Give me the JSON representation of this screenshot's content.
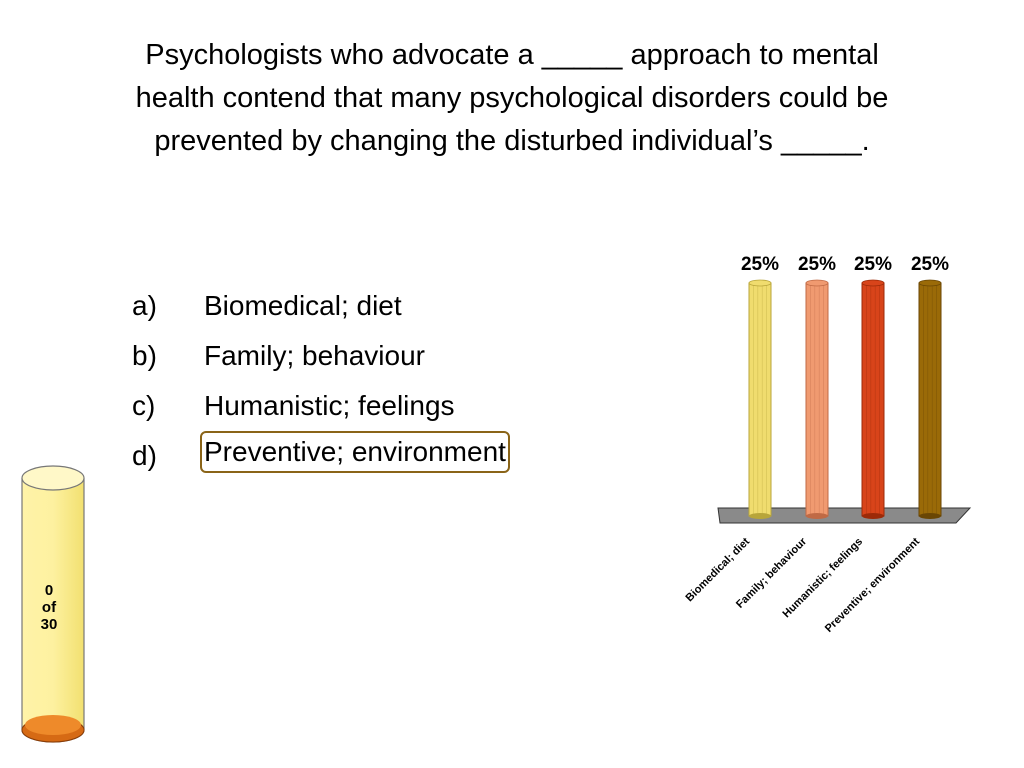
{
  "question": {
    "lines": [
      "Psychologists who advocate a _____ approach to mental",
      "health contend that many psychological disorders could be",
      "prevented by changing the disturbed individual’s _____."
    ]
  },
  "answers": [
    {
      "letter": "a)",
      "text": "Biomedical; diet",
      "correct": false
    },
    {
      "letter": "b)",
      "text": "Family; behaviour",
      "correct": false
    },
    {
      "letter": "c)",
      "text": "Humanistic; feelings",
      "correct": false
    },
    {
      "letter": "d)",
      "text": "Preventive; environment",
      "correct": true
    }
  ],
  "counter": {
    "current": "0",
    "of_label": "of",
    "total": "30",
    "fill_fraction": 0.0
  },
  "chart_data": {
    "type": "bar",
    "categories": [
      "Biomedical; diet",
      "Family; behaviour",
      "Humanistic; feelings",
      "Preventive; environment"
    ],
    "values": [
      25,
      25,
      25,
      25
    ],
    "value_labels": [
      "25%",
      "25%",
      "25%",
      "25%"
    ],
    "ylim": [
      0,
      25
    ],
    "colors": [
      "#f0dc6e",
      "#f09a70",
      "#d8441a",
      "#9a6a08"
    ],
    "colors_dark": [
      "#b8a53a",
      "#c06a45",
      "#9c2a08",
      "#6a4604"
    ],
    "floor_color": "#8a8a8a",
    "title": "",
    "xlabel": "",
    "ylabel": ""
  }
}
